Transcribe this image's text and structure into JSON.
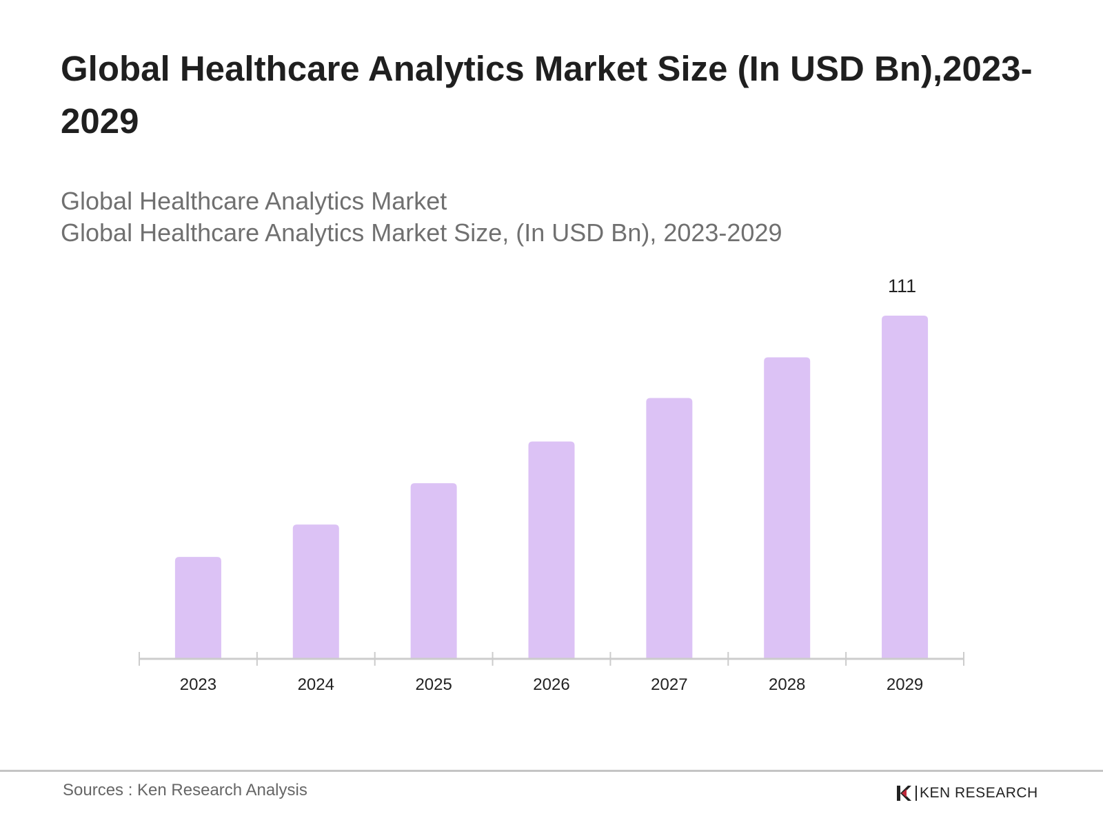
{
  "header": {
    "title": "Global Healthcare Analytics Market Size (In USD Bn),2023-2029",
    "subtitle_1": "Global Healthcare Analytics Market",
    "subtitle_2": "Global Healthcare Analytics Market Size, (In USD Bn), 2023-2029"
  },
  "chart_data": {
    "type": "bar",
    "title": "Global Healthcare Analytics Market Size (In USD Bn),2023-2029",
    "xlabel": "",
    "ylabel": "",
    "categories": [
      "2023",
      "2024",
      "2025",
      "2026",
      "2027",
      "2028",
      "2029"
    ],
    "values": [
      32.8,
      43.3,
      56.7,
      70.2,
      84.3,
      97.5,
      111
    ],
    "data_labels": [
      "",
      "",
      "",
      "",
      "",
      "",
      "111"
    ],
    "ylim": [
      0,
      111
    ],
    "grid": false,
    "bar_color": "#dcc2f5"
  },
  "footer": {
    "source": "Sources : Ken Research Analysis",
    "logo_text": "KEN RESEARCH"
  }
}
